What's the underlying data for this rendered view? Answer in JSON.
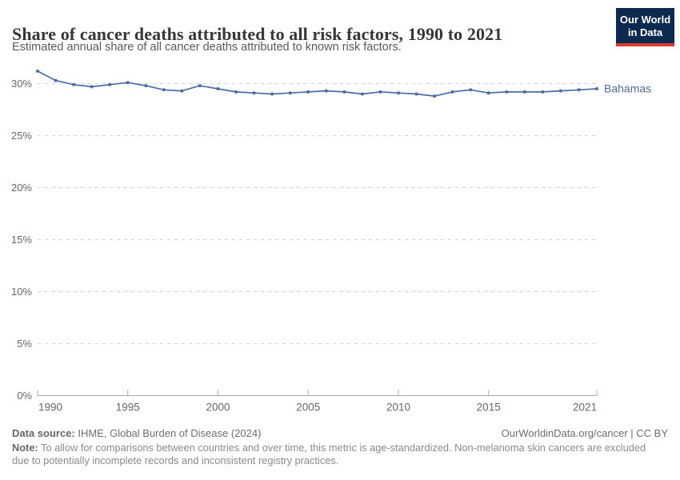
{
  "header": {
    "title": "Share of cancer deaths attributed to all risk factors, 1990 to 2021",
    "subtitle": "Estimated annual share of all cancer deaths attributed to known risk factors."
  },
  "logo": {
    "line1": "Our World",
    "line2": "in Data",
    "bg_color": "#0c2950",
    "stripe_color": "#d93c31"
  },
  "chart_data": {
    "type": "line",
    "title": "Share of cancer deaths attributed to all risk factors, 1990 to 2021",
    "subtitle": "Estimated annual share of all cancer deaths attributed to known risk factors.",
    "x": [
      1990,
      1991,
      1992,
      1993,
      1994,
      1995,
      1996,
      1997,
      1998,
      1999,
      2000,
      2001,
      2002,
      2003,
      2004,
      2005,
      2006,
      2007,
      2008,
      2009,
      2010,
      2011,
      2012,
      2013,
      2014,
      2015,
      2016,
      2017,
      2018,
      2019,
      2020,
      2021
    ],
    "series": [
      {
        "name": "Bahamas",
        "color": "#4d6ba3",
        "values": [
          31.2,
          30.3,
          29.9,
          29.7,
          29.9,
          30.1,
          29.8,
          29.4,
          29.3,
          29.8,
          29.5,
          29.2,
          29.1,
          29.0,
          29.1,
          29.2,
          29.3,
          29.2,
          29.0,
          29.2,
          29.1,
          29.0,
          28.8,
          29.2,
          29.4,
          29.1,
          29.2,
          29.2,
          29.2,
          29.3,
          29.4,
          29.5
        ]
      }
    ],
    "xlabel": "",
    "ylabel": "",
    "ylim": [
      0,
      31.5
    ],
    "yticks": {
      "values": [
        0,
        5,
        10,
        15,
        20,
        25,
        30
      ],
      "labels": [
        "0%",
        "5%",
        "10%",
        "15%",
        "20%",
        "25%",
        "30%"
      ]
    },
    "xticks": {
      "values": [
        1990,
        1995,
        2000,
        2005,
        2010,
        2015,
        2021
      ],
      "labels": [
        "1990",
        "1995",
        "2000",
        "2005",
        "2010",
        "2015",
        "2021"
      ]
    },
    "grid": "horizontal dashed",
    "legend": "end-of-line label",
    "colors": {
      "grid": "#d4d4d4",
      "axis": "#a8a8a8",
      "tick_label": "#666666"
    }
  },
  "footer": {
    "source_label": "Data source:",
    "source_text": " IHME, Global Burden of Disease (2024)",
    "attribution": "OurWorldinData.org/cancer | CC BY",
    "note_label": "Note:",
    "note_text": " To allow for comparisons between countries and over time, this metric is age-standardized. Non-melanoma skin cancers are excluded due to potentially incomplete records and inconsistent registry practices."
  }
}
